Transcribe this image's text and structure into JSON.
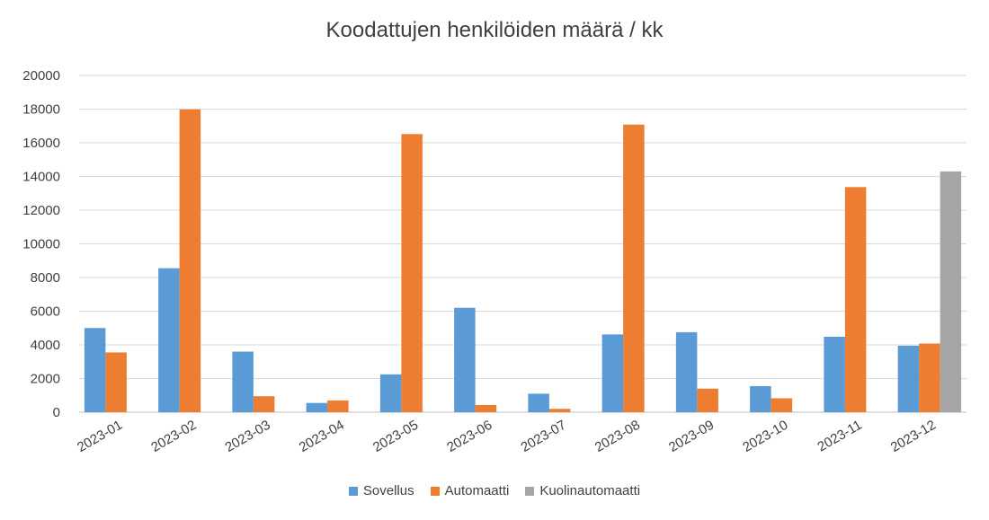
{
  "chart_data": {
    "type": "bar",
    "title": "Koodattujen henkilöiden määrä / kk",
    "categories": [
      "2023-01",
      "2023-02",
      "2023-03",
      "2023-04",
      "2023-05",
      "2023-06",
      "2023-07",
      "2023-08",
      "2023-09",
      "2023-10",
      "2023-11",
      "2023-12"
    ],
    "series": [
      {
        "name": "Sovellus",
        "color": "#5b9bd5",
        "values": [
          5000,
          8550,
          3600,
          550,
          2250,
          6200,
          1100,
          4620,
          4750,
          1550,
          4480,
          3950
        ]
      },
      {
        "name": "Automaatti",
        "color": "#ed7d31",
        "values": [
          3550,
          17980,
          950,
          700,
          16520,
          430,
          200,
          17080,
          1400,
          830,
          13370,
          4080
        ]
      },
      {
        "name": "Kuolinautomaatti",
        "color": "#a5a5a5",
        "values": [
          null,
          null,
          null,
          null,
          null,
          null,
          null,
          null,
          null,
          null,
          null,
          14300
        ]
      }
    ],
    "ylim": [
      0,
      20000
    ],
    "yticks": [
      "0",
      "2000",
      "4000",
      "6000",
      "8000",
      "10000",
      "12000",
      "14000",
      "16000",
      "18000",
      "20000"
    ],
    "grid": true,
    "legend_position": "bottom"
  }
}
